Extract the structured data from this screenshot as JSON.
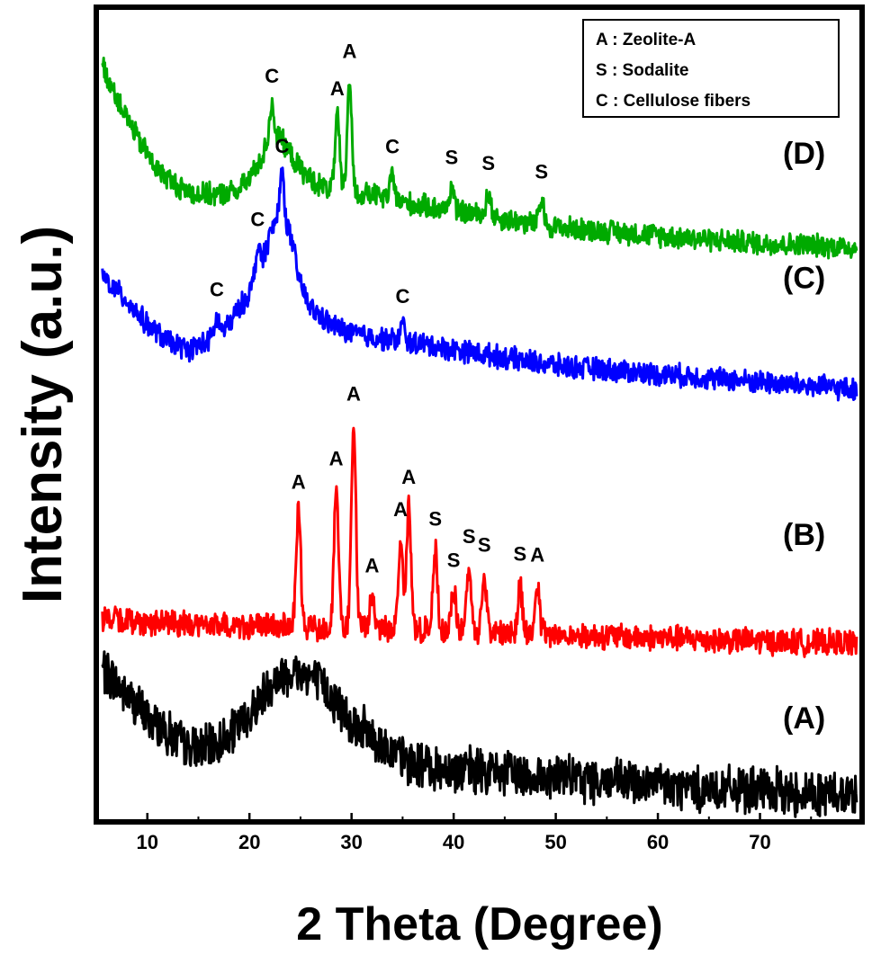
{
  "chart_data": {
    "type": "line",
    "xlabel": "2 Theta (Degree)",
    "ylabel": "Intensity (a.u.)",
    "xlim": [
      5,
      80
    ],
    "ylim": [
      0,
      100
    ],
    "x_ticks": [
      10,
      20,
      30,
      40,
      50,
      60,
      70
    ],
    "y_ticks_shown": false,
    "grid": false,
    "legend_position": "top-right",
    "legend": [
      {
        "text": "A : Zeolite-A"
      },
      {
        "text": "S : Sodalite"
      },
      {
        "text": "C : Cellulose fibers"
      }
    ],
    "series": [
      {
        "label": "(A)",
        "color": "#000000",
        "noise": 3.2,
        "points": [
          [
            5.5,
            19
          ],
          [
            8,
            15.5
          ],
          [
            10,
            13
          ],
          [
            12,
            11
          ],
          [
            14,
            9
          ],
          [
            16,
            9
          ],
          [
            18,
            10.5
          ],
          [
            20,
            13
          ],
          [
            22,
            17
          ],
          [
            24,
            18.5
          ],
          [
            26,
            18
          ],
          [
            28,
            15.5
          ],
          [
            30,
            12.5
          ],
          [
            32,
            10.5
          ],
          [
            34,
            8.5
          ],
          [
            36,
            7
          ],
          [
            40,
            6.5
          ],
          [
            45,
            6
          ],
          [
            50,
            5.5
          ],
          [
            55,
            5
          ],
          [
            60,
            4.5
          ],
          [
            65,
            4
          ],
          [
            70,
            3.8
          ],
          [
            75,
            3.5
          ],
          [
            79.5,
            3.5
          ]
        ],
        "peaks": []
      },
      {
        "label": "(B)",
        "color": "#ff0000",
        "noise": 1.8,
        "points": [
          [
            5.5,
            25
          ],
          [
            10,
            24.5
          ],
          [
            15,
            24.2
          ],
          [
            20,
            24
          ],
          [
            25,
            24
          ],
          [
            30,
            23.8
          ],
          [
            35,
            23.6
          ],
          [
            40,
            23.4
          ],
          [
            45,
            23.2
          ],
          [
            50,
            23
          ],
          [
            55,
            22.8
          ],
          [
            60,
            22.6
          ],
          [
            65,
            22.4
          ],
          [
            70,
            22.2
          ],
          [
            75,
            22
          ],
          [
            79.5,
            22
          ]
        ],
        "peaks": [
          {
            "x": 24.8,
            "h": 14,
            "label": "A"
          },
          {
            "x": 28.5,
            "h": 17,
            "label": "A"
          },
          {
            "x": 30.2,
            "h": 25,
            "label": "A"
          },
          {
            "x": 32.0,
            "h": 4,
            "label": "A"
          },
          {
            "x": 34.8,
            "h": 11,
            "label": "A"
          },
          {
            "x": 35.6,
            "h": 15,
            "label": "A"
          },
          {
            "x": 38.2,
            "h": 10,
            "label": "S"
          },
          {
            "x": 40.0,
            "h": 5,
            "label": "S"
          },
          {
            "x": 41.5,
            "h": 8,
            "label": "S"
          },
          {
            "x": 43.0,
            "h": 7,
            "label": "S"
          },
          {
            "x": 46.5,
            "h": 6,
            "label": "S"
          },
          {
            "x": 48.2,
            "h": 6,
            "label": "A"
          }
        ]
      },
      {
        "label": "(C)",
        "color": "#0000ff",
        "noise": 1.6,
        "points": [
          [
            5.5,
            67
          ],
          [
            8,
            64
          ],
          [
            10,
            61
          ],
          [
            12,
            59
          ],
          [
            14,
            58
          ],
          [
            16,
            59
          ],
          [
            18,
            61
          ],
          [
            20,
            65
          ],
          [
            21,
            68
          ],
          [
            22,
            72
          ],
          [
            23,
            75
          ],
          [
            24,
            72
          ],
          [
            25,
            66
          ],
          [
            26,
            63
          ],
          [
            28,
            61
          ],
          [
            30,
            60
          ],
          [
            32,
            59.5
          ],
          [
            35,
            59
          ],
          [
            40,
            58
          ],
          [
            45,
            57
          ],
          [
            50,
            56
          ],
          [
            55,
            55.5
          ],
          [
            60,
            55
          ],
          [
            65,
            54.5
          ],
          [
            70,
            54
          ],
          [
            75,
            53.5
          ],
          [
            79.5,
            53
          ]
        ],
        "peaks": [
          {
            "x": 16.8,
            "h": 2,
            "label": "C"
          },
          {
            "x": 20.8,
            "h": 3,
            "label": "C"
          },
          {
            "x": 23.2,
            "h": 5,
            "label": "C"
          },
          {
            "x": 35.0,
            "h": 2,
            "label": "C"
          }
        ]
      },
      {
        "label": "(D)",
        "color": "#00aa00",
        "noise": 1.6,
        "points": [
          [
            5.5,
            93
          ],
          [
            7,
            89
          ],
          [
            9,
            84
          ],
          [
            11,
            80
          ],
          [
            13,
            78
          ],
          [
            15,
            77
          ],
          [
            17,
            77
          ],
          [
            19,
            77.5
          ],
          [
            20,
            79
          ],
          [
            21,
            81
          ],
          [
            22,
            84
          ],
          [
            23,
            84
          ],
          [
            24,
            82
          ],
          [
            25,
            80
          ],
          [
            27,
            78
          ],
          [
            30,
            77
          ],
          [
            32,
            77
          ],
          [
            35,
            76
          ],
          [
            40,
            75
          ],
          [
            45,
            74
          ],
          [
            50,
            73
          ],
          [
            55,
            72.5
          ],
          [
            60,
            72
          ],
          [
            65,
            71.5
          ],
          [
            70,
            71
          ],
          [
            75,
            70.8
          ],
          [
            79.5,
            70.5
          ]
        ],
        "peaks": [
          {
            "x": 22.2,
            "h": 4,
            "label": "C"
          },
          {
            "x": 28.6,
            "h": 9,
            "label": "A"
          },
          {
            "x": 29.8,
            "h": 14,
            "label": "A"
          },
          {
            "x": 34.0,
            "h": 3,
            "label": "C"
          },
          {
            "x": 39.8,
            "h": 3,
            "label": "S"
          },
          {
            "x": 43.4,
            "h": 3,
            "label": "S"
          },
          {
            "x": 48.6,
            "h": 3,
            "label": "S"
          }
        ]
      }
    ]
  }
}
